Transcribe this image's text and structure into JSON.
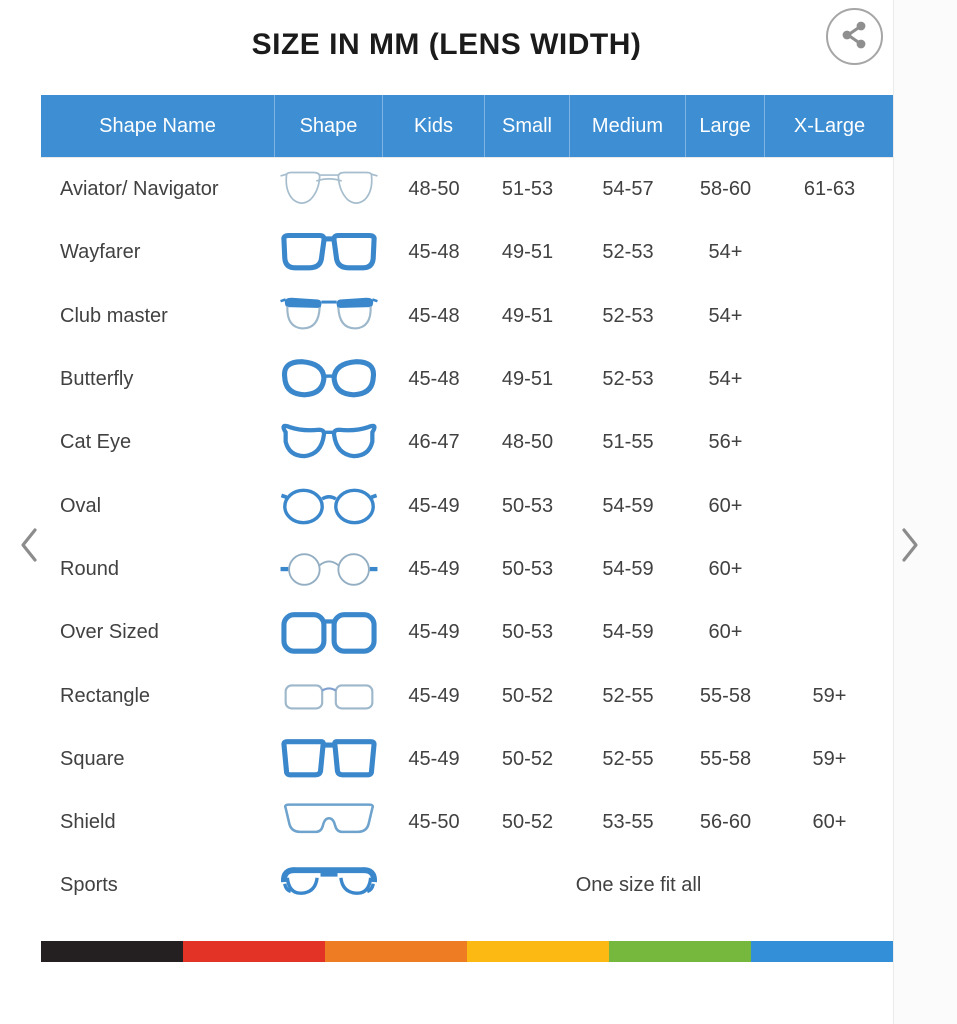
{
  "title": "SIZE IN MM (LENS WIDTH)",
  "share": {
    "icon": "share-icon"
  },
  "nav": {
    "prev_icon": "chevron-left-icon",
    "next_icon": "chevron-right-icon"
  },
  "table": {
    "columns": [
      "Shape Name",
      "Shape",
      "Kids",
      "Small",
      "Medium",
      "Large",
      "X-Large"
    ],
    "rows": [
      {
        "name": "Aviator/ Navigator",
        "icon": "aviator",
        "sizes": [
          "48-50",
          "51-53",
          "54-57",
          "58-60",
          "61-63"
        ]
      },
      {
        "name": "Wayfarer",
        "icon": "wayfarer",
        "sizes": [
          "45-48",
          "49-51",
          "52-53",
          "54+",
          ""
        ]
      },
      {
        "name": "Club master",
        "icon": "clubmaster",
        "sizes": [
          "45-48",
          "49-51",
          "52-53",
          "54+",
          ""
        ]
      },
      {
        "name": "Butterfly",
        "icon": "butterfly",
        "sizes": [
          "45-48",
          "49-51",
          "52-53",
          "54+",
          ""
        ]
      },
      {
        "name": "Cat Eye",
        "icon": "cateye",
        "sizes": [
          "46-47",
          "48-50",
          "51-55",
          "56+",
          ""
        ]
      },
      {
        "name": "Oval",
        "icon": "oval",
        "sizes": [
          "45-49",
          "50-53",
          "54-59",
          "60+",
          ""
        ]
      },
      {
        "name": "Round",
        "icon": "round",
        "sizes": [
          "45-49",
          "50-53",
          "54-59",
          "60+",
          ""
        ]
      },
      {
        "name": "Over Sized",
        "icon": "oversized",
        "sizes": [
          "45-49",
          "50-53",
          "54-59",
          "60+",
          ""
        ]
      },
      {
        "name": "Rectangle",
        "icon": "rectangle",
        "sizes": [
          "45-49",
          "50-52",
          "52-55",
          "55-58",
          "59+"
        ]
      },
      {
        "name": "Square",
        "icon": "square",
        "sizes": [
          "45-49",
          "50-52",
          "52-55",
          "55-58",
          "59+"
        ]
      },
      {
        "name": "Shield",
        "icon": "shield",
        "sizes": [
          "45-50",
          "50-52",
          "53-55",
          "56-60",
          "60+"
        ]
      },
      {
        "name": "Sports",
        "icon": "sports",
        "span_text": "One size fit all"
      }
    ]
  },
  "colors": {
    "header_bg": "#3d8ed2",
    "frame_blue": "#3b87cc",
    "frame_light": "#9db7cb",
    "stripe": [
      "#242021",
      "#e33226",
      "#ee7c22",
      "#fcb813",
      "#76b73d",
      "#338fd7"
    ]
  }
}
